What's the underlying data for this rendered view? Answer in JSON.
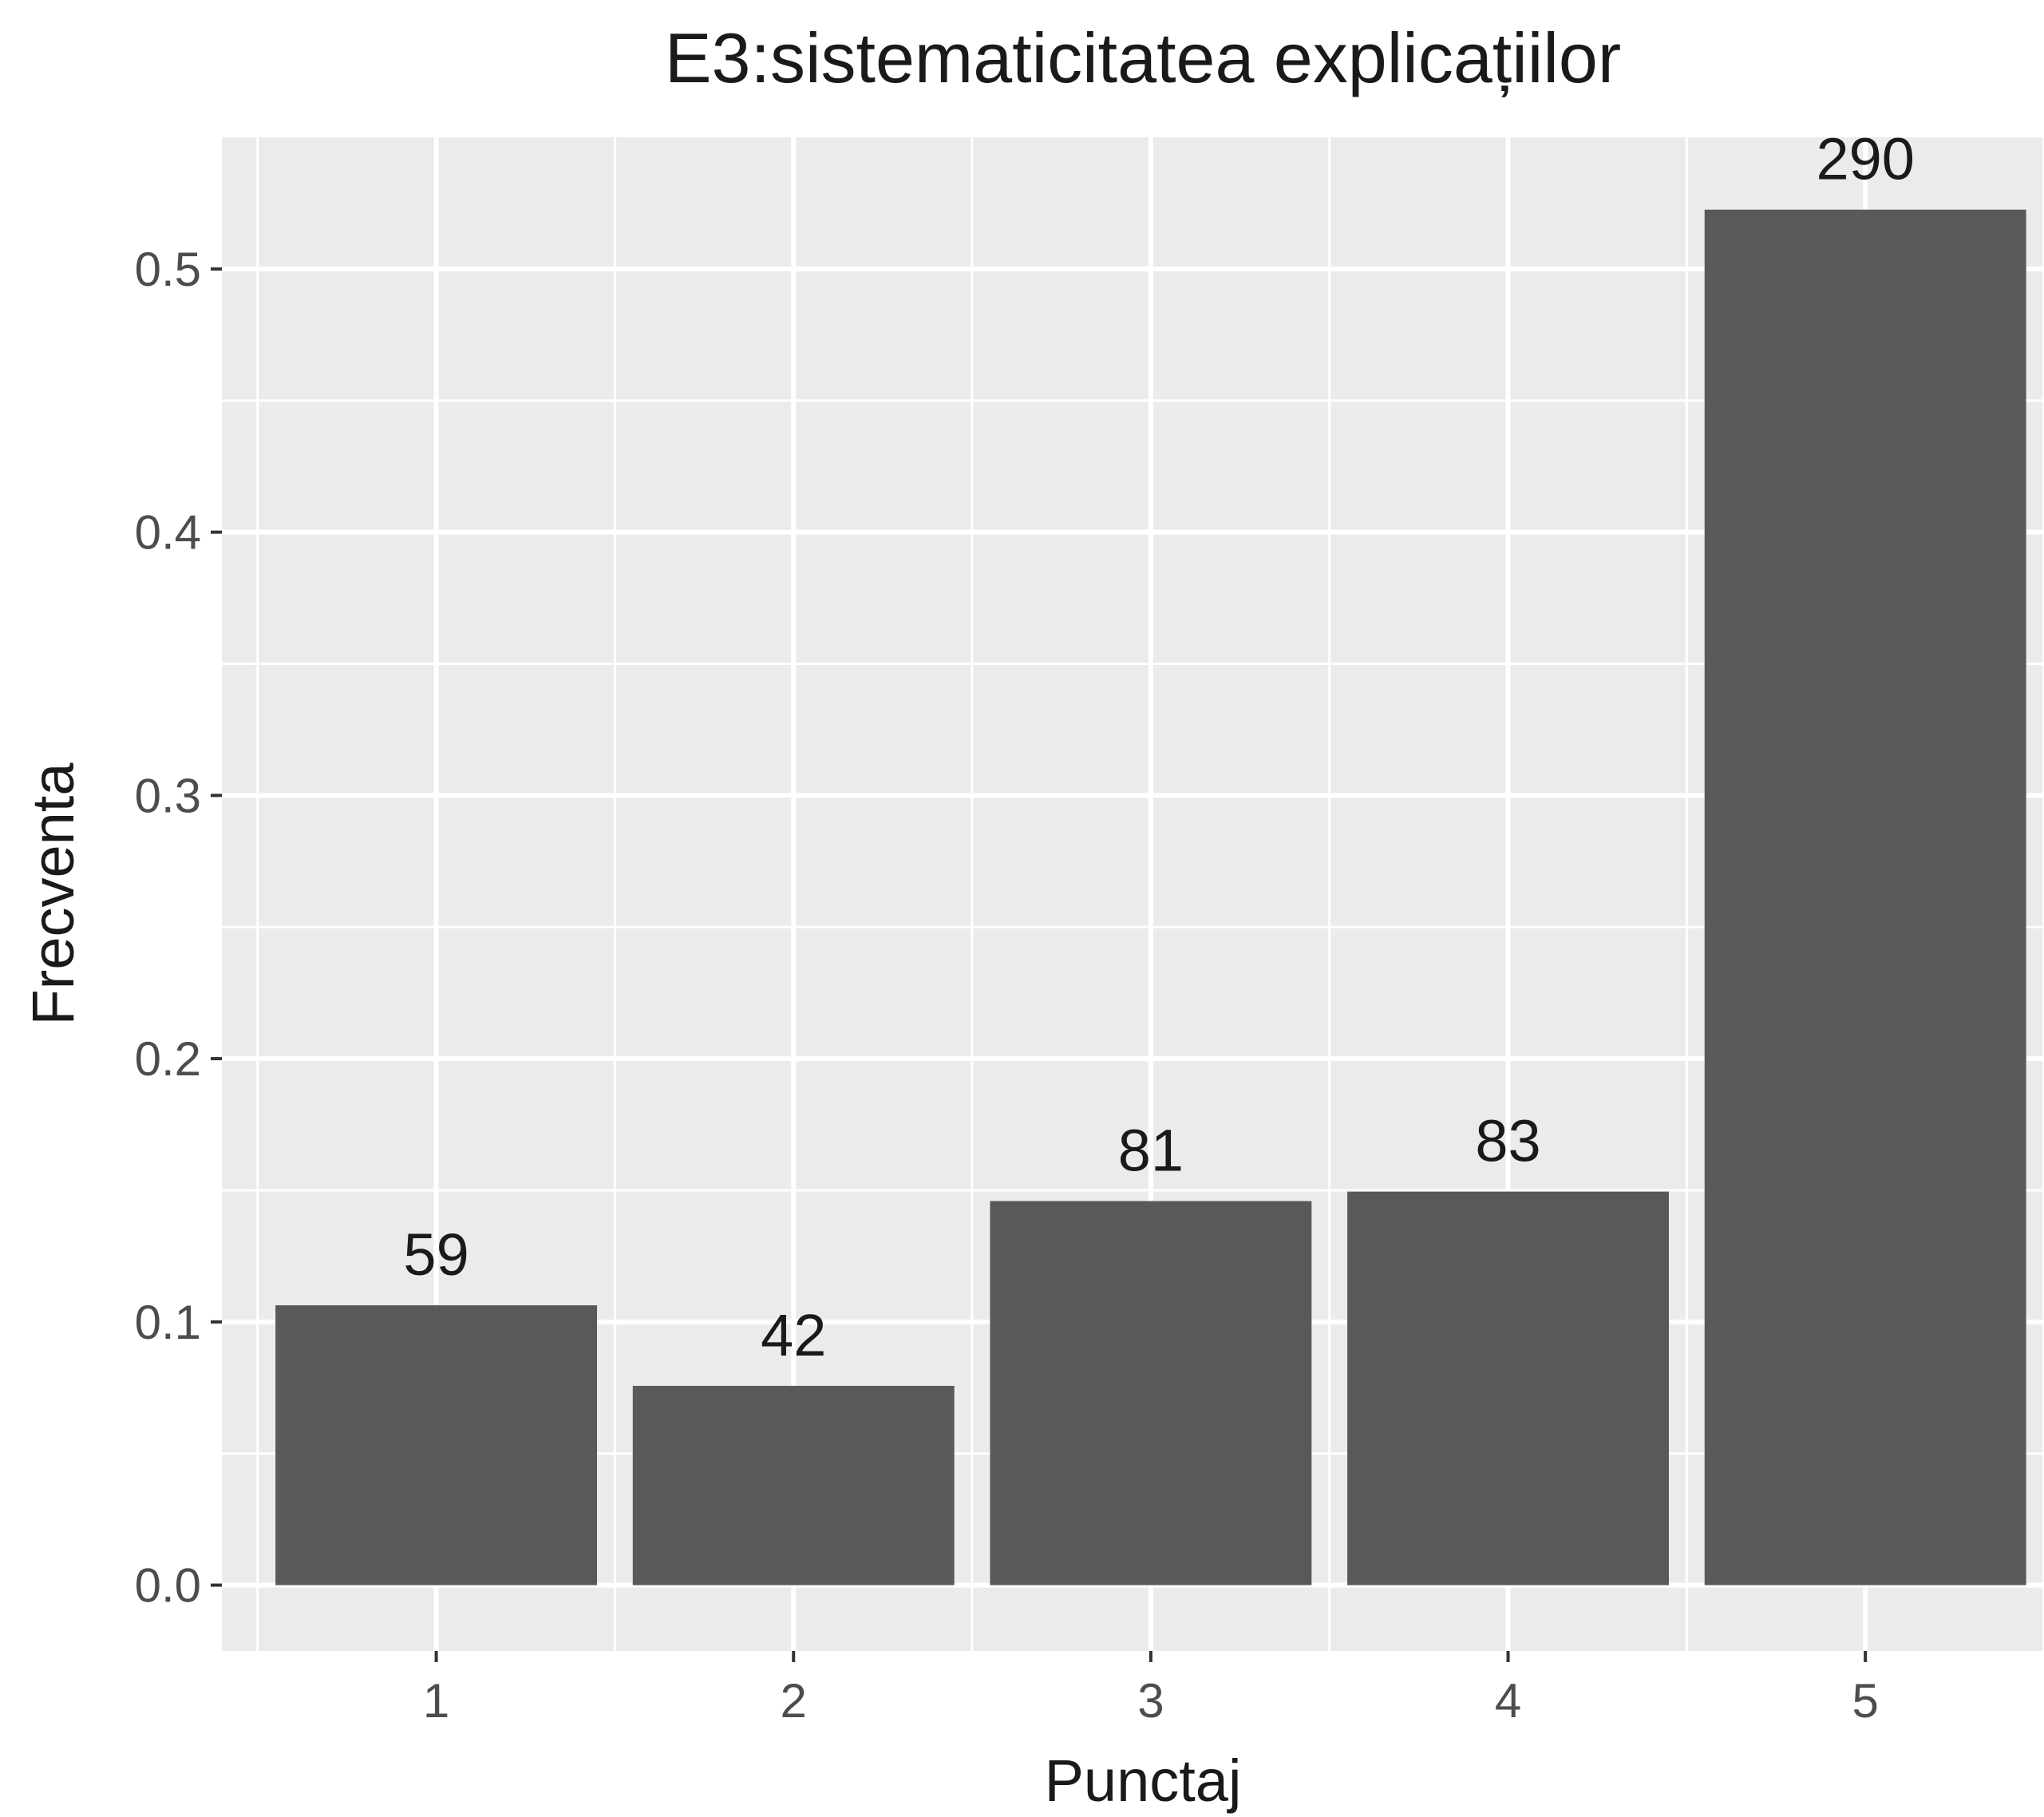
{
  "chart_data": {
    "type": "bar",
    "title": "E3:sistematicitatea explicațiilor",
    "xlabel": "Punctaj",
    "ylabel": "Frecventa",
    "categories": [
      "1",
      "2",
      "3",
      "4",
      "5"
    ],
    "values": [
      0.1063,
      0.0757,
      0.1459,
      0.1495,
      0.5225
    ],
    "data_labels": [
      "59",
      "42",
      "81",
      "83",
      "290"
    ],
    "ylim": [
      -0.025,
      0.55
    ],
    "yticks": [
      0.0,
      0.1,
      0.2,
      0.3,
      0.4,
      0.5
    ],
    "ytick_labels": [
      "0.0",
      "0.1",
      "0.2",
      "0.3",
      "0.4",
      "0.5"
    ],
    "grid": true,
    "legend": "none",
    "colors": {
      "panel_background": "#ebebeb",
      "grid": "#ffffff",
      "bar": "#595959",
      "tick": "#333333"
    }
  }
}
